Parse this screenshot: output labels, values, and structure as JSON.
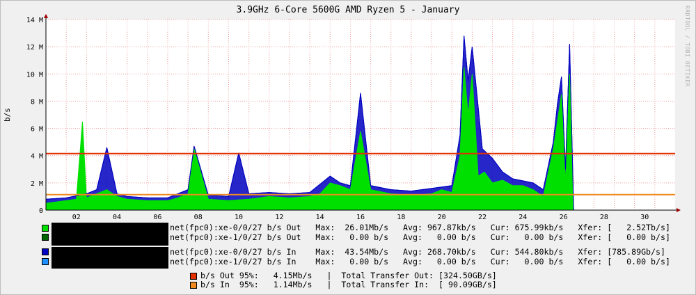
{
  "chart_data": {
    "type": "area",
    "title": "3.9GHz 6-Core 5600G AMD Ryzen 5 - January",
    "ylabel": "b/s",
    "xlabel": "",
    "ylim": [
      0,
      14000000
    ],
    "xlim": [
      0,
      31
    ],
    "y_ticks": [
      "0",
      "2 M",
      "4 M",
      "6 M",
      "8 M",
      "10 M",
      "12 M",
      "14 M"
    ],
    "x_ticks": [
      "02",
      "04",
      "06",
      "08",
      "10",
      "12",
      "14",
      "16",
      "18",
      "20",
      "22",
      "24",
      "26",
      "28",
      "30"
    ],
    "grid": true,
    "colors": {
      "out": "#00e000",
      "in": "#0000c0",
      "p95_out": "#e23000",
      "p95_in": "#f08a20"
    },
    "series": [
      {
        "name": "net(fpc0):xe-0/0/27 b/s Out",
        "color": "#00e000",
        "x": [
          0.0,
          1.0,
          1.5,
          1.8,
          2.0,
          2.5,
          3.0,
          3.5,
          4.0,
          5.0,
          6.0,
          6.5,
          7.0,
          7.3,
          8.0,
          9.0,
          10.0,
          11.0,
          12.0,
          13.0,
          13.5,
          14.0,
          14.5,
          15.0,
          15.5,
          16.0,
          17.0,
          18.0,
          19.0,
          19.5,
          20.0,
          20.4,
          20.6,
          20.8,
          21.0,
          21.3,
          21.6,
          22.0,
          22.5,
          23.0,
          23.5,
          24.0,
          24.5,
          25.0,
          25.2,
          25.4,
          25.6,
          25.8,
          26.0
        ],
        "values": [
          500000,
          700000,
          800000,
          6500000,
          900000,
          1200000,
          1500000,
          1000000,
          800000,
          700000,
          700000,
          900000,
          1200000,
          4500000,
          800000,
          700000,
          800000,
          1000000,
          900000,
          1000000,
          1200000,
          2000000,
          1800000,
          1500000,
          5800000,
          1500000,
          1200000,
          1100000,
          1200000,
          1500000,
          1300000,
          4000000,
          10500000,
          7000000,
          10000000,
          2500000,
          2800000,
          2000000,
          2200000,
          1800000,
          1800000,
          1500000,
          1000000,
          4500000,
          6500000,
          8500000,
          2000000,
          10000000,
          0
        ]
      },
      {
        "name": "net(fpc0):xe-1/0/27 b/s Out",
        "color": "#006400",
        "x": [
          0,
          26
        ],
        "values": [
          0,
          0
        ]
      },
      {
        "name": "net(fpc0):xe-0/0/27 b/s In",
        "color": "#0000c0",
        "x": [
          0.0,
          1.0,
          2.0,
          2.5,
          3.0,
          3.5,
          4.0,
          5.0,
          6.0,
          6.5,
          7.0,
          7.3,
          8.0,
          9.0,
          9.5,
          10.0,
          11.0,
          12.0,
          13.0,
          14.0,
          14.5,
          15.0,
          15.5,
          16.0,
          17.0,
          18.0,
          19.0,
          20.0,
          20.4,
          20.6,
          20.8,
          21.0,
          21.5,
          22.0,
          22.5,
          23.0,
          24.0,
          24.5,
          25.0,
          25.2,
          25.4,
          25.6,
          25.8,
          26.0
        ],
        "values": [
          800000,
          900000,
          1200000,
          1500000,
          4600000,
          1200000,
          1000000,
          900000,
          900000,
          1200000,
          1500000,
          4700000,
          1100000,
          1000000,
          4200000,
          1200000,
          1300000,
          1200000,
          1300000,
          2500000,
          2000000,
          1800000,
          8600000,
          1800000,
          1500000,
          1400000,
          1600000,
          1800000,
          5500000,
          12800000,
          9500000,
          12000000,
          4500000,
          3800000,
          2800000,
          2300000,
          2000000,
          1500000,
          5000000,
          7800000,
          9800000,
          3000000,
          12200000,
          0
        ]
      },
      {
        "name": "net(fpc0):xe-1/0/27 b/s In",
        "color": "#1e90ff",
        "x": [
          0,
          26
        ],
        "values": [
          0,
          0
        ]
      }
    ],
    "hlines": [
      {
        "name": "b/s Out 95%",
        "value": 4150000,
        "color": "#e23000"
      },
      {
        "name": "b/s In 95%",
        "value": 1140000,
        "color": "#f08a20"
      }
    ]
  },
  "legend": {
    "rows": [
      {
        "text": "net(fpc0):xe-0/0/27 b/s Out   Max:  26.01Mb/s   Avg: 967.87kb/s   Cur: 675.99kb/s   Xfer: [   2.52Tb/s]",
        "color": "#00e000"
      },
      {
        "text": "net(fpc0):xe-1/0/27 b/s Out   Max:   0.00 b/s   Avg:   0.00 b/s   Cur:   0.00 b/s   Xfer: [   0.00 b/s]",
        "color": "#006400"
      },
      {
        "text": "net(fpc0):xe-0/0/27 b/s In    Max:  43.54Mb/s   Avg: 268.70kb/s   Cur: 544.80kb/s   Xfer: [785.89Gb/s]",
        "color": "#0000c0"
      },
      {
        "text": "net(fpc0):xe-1/0/27 b/s In    Max:   0.00 b/s   Avg:   0.00 b/s   Cur:   0.00 b/s   Xfer: [   0.00 b/s]",
        "color": "#1e90ff"
      }
    ],
    "summary": [
      {
        "text": "b/s Out 95%:   4.15Mb/s   |  Total Transfer Out: [324.50GB/s]",
        "color": "#e23000"
      },
      {
        "text": "b/s In  95%:   1.14Mb/s   |  Total Transfer In:  [ 90.09GB/s]",
        "color": "#f08a20"
      }
    ]
  },
  "watermark": "RRDTOOL / TOBI OETIKER"
}
